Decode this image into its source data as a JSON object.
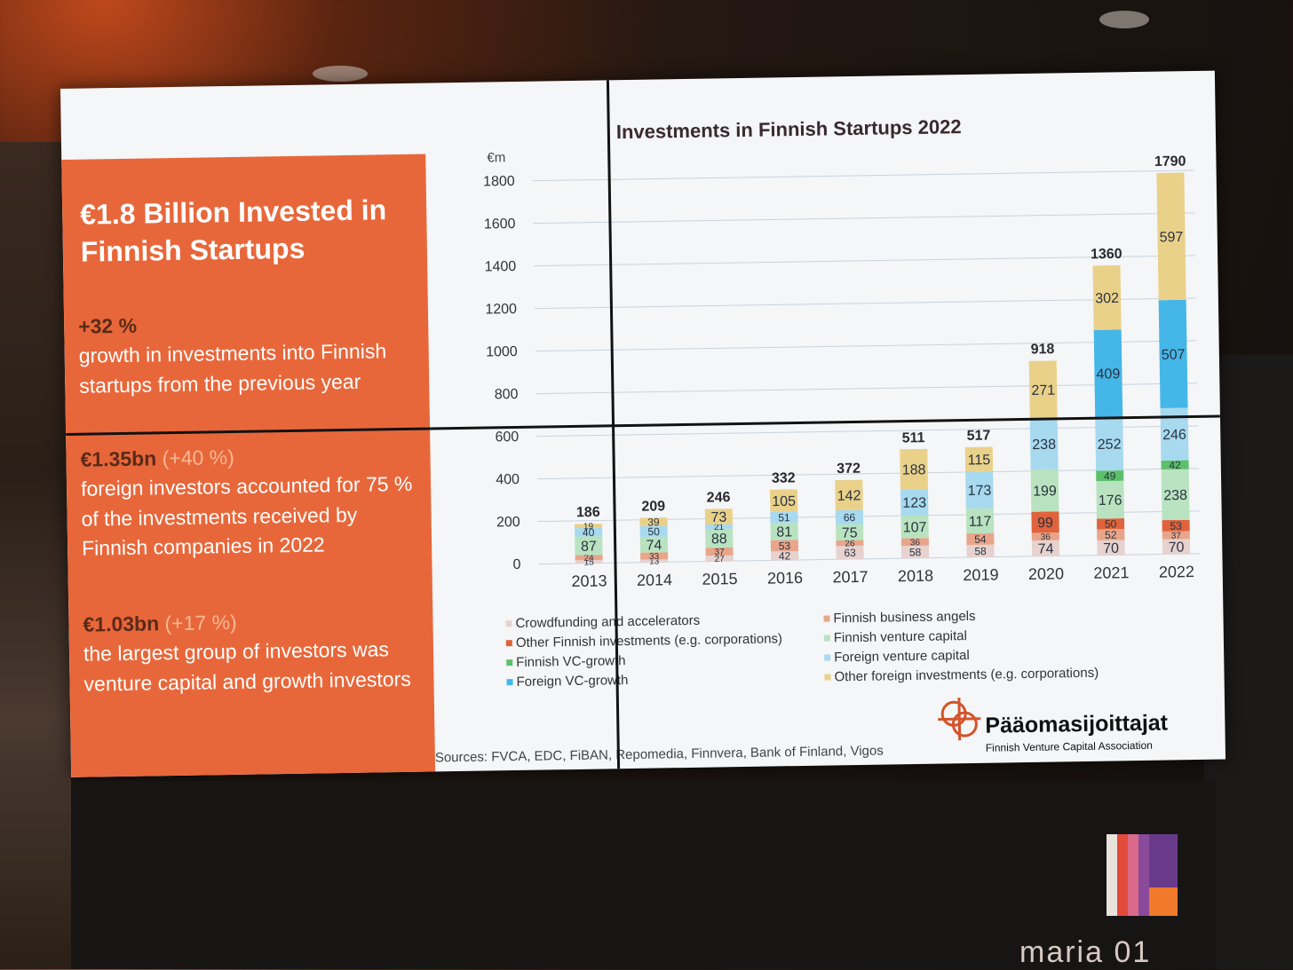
{
  "slide": {
    "headline": "€1.8 Billion Invested in Finnish Startups",
    "stat1_value": "+32 %",
    "stat1_text": "growth in investments into Finnish startups from the previous year",
    "stat2_value": "€1.35bn",
    "stat2_paren": "(+40 %)",
    "stat2_text": "foreign investors accounted for 75 % of the investments received by Finnish companies in 2022",
    "stat3_value": "€1.03bn",
    "stat3_paren": "(+17 %)",
    "stat3_text": "the largest group of investors was venture capital and growth investors",
    "sources": "Sources: FVCA, EDC, FiBAN, Repomedia, Finnvera, Bank of Finland, Vigos",
    "logo_name": "Pääomasijoittajat",
    "logo_sub": "Finnish Venture Capital Association",
    "accent_color": "#e8673a"
  },
  "stand": {
    "room_text": "maria 01"
  },
  "chart_data": {
    "type": "bar",
    "stacked": true,
    "title": "Investments in Finnish Startups 2022",
    "ylabel": "€m",
    "ylim": [
      0,
      1800
    ],
    "yticks": [
      0,
      200,
      400,
      600,
      800,
      1000,
      1200,
      1400,
      1600,
      1800
    ],
    "grid": true,
    "legend_position": "bottom",
    "categories": [
      "2013",
      "2014",
      "2015",
      "2016",
      "2017",
      "2018",
      "2019",
      "2020",
      "2021",
      "2022"
    ],
    "totals": [
      186,
      209,
      246,
      332,
      372,
      511,
      517,
      918,
      1360,
      1790
    ],
    "series": [
      {
        "name": "Crowdfunding and accelerators",
        "color": "#e7d2cf",
        "values": [
          15,
          13,
          27,
          42,
          63,
          58,
          58,
          74,
          70,
          70
        ]
      },
      {
        "name": "Finnish business angels",
        "color": "#e8a58a",
        "values": [
          24,
          33,
          37,
          53,
          26,
          36,
          54,
          36,
          52,
          37
        ]
      },
      {
        "name": "Other Finnish investments (e.g. corporations)",
        "color": "#e0633c",
        "values": [
          null,
          null,
          null,
          null,
          null,
          null,
          null,
          99,
          50,
          53
        ]
      },
      {
        "name": "Finnish venture capital",
        "color": "#b9e3c0",
        "values": [
          87,
          74,
          88,
          81,
          75,
          107,
          117,
          199,
          176,
          238
        ]
      },
      {
        "name": "Finnish VC-growth",
        "color": "#5cc06a",
        "values": [
          null,
          null,
          null,
          null,
          null,
          null,
          null,
          null,
          49,
          42
        ]
      },
      {
        "name": "Foreign venture capital",
        "color": "#a7d9ef",
        "values": [
          40,
          50,
          21,
          51,
          66,
          123,
          173,
          238,
          252,
          246
        ]
      },
      {
        "name": "Foreign VC-growth",
        "color": "#45b6e8",
        "values": [
          null,
          null,
          null,
          null,
          null,
          null,
          null,
          null,
          409,
          507
        ]
      },
      {
        "name": "Other foreign investments (e.g. corporations)",
        "color": "#ead18a",
        "values": [
          19,
          39,
          73,
          105,
          142,
          188,
          115,
          271,
          302,
          597
        ]
      }
    ]
  }
}
